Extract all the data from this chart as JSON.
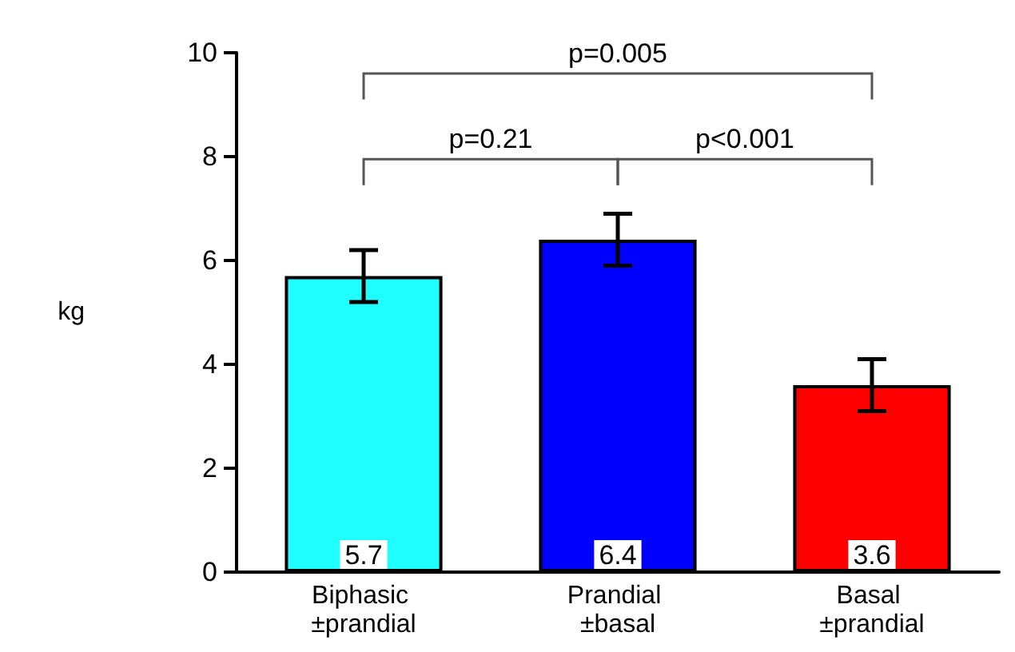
{
  "chart_data": {
    "type": "bar",
    "ylabel": "kg",
    "categories": [
      "Biphasic ±prandial",
      "Prandial ±basal",
      "Basal ±prandial"
    ],
    "values": [
      5.7,
      6.4,
      3.6
    ],
    "colors": [
      "#1fffff",
      "#0000ff",
      "#ff0000"
    ],
    "errors": [
      0.5,
      0.5,
      0.5
    ],
    "data_labels": true,
    "ylim": [
      0,
      10
    ],
    "yticks": [
      0,
      2,
      4,
      6,
      8,
      10
    ],
    "grid": false,
    "annotations": [
      "p=0.005",
      "p=0.21",
      "p<0.001"
    ]
  }
}
